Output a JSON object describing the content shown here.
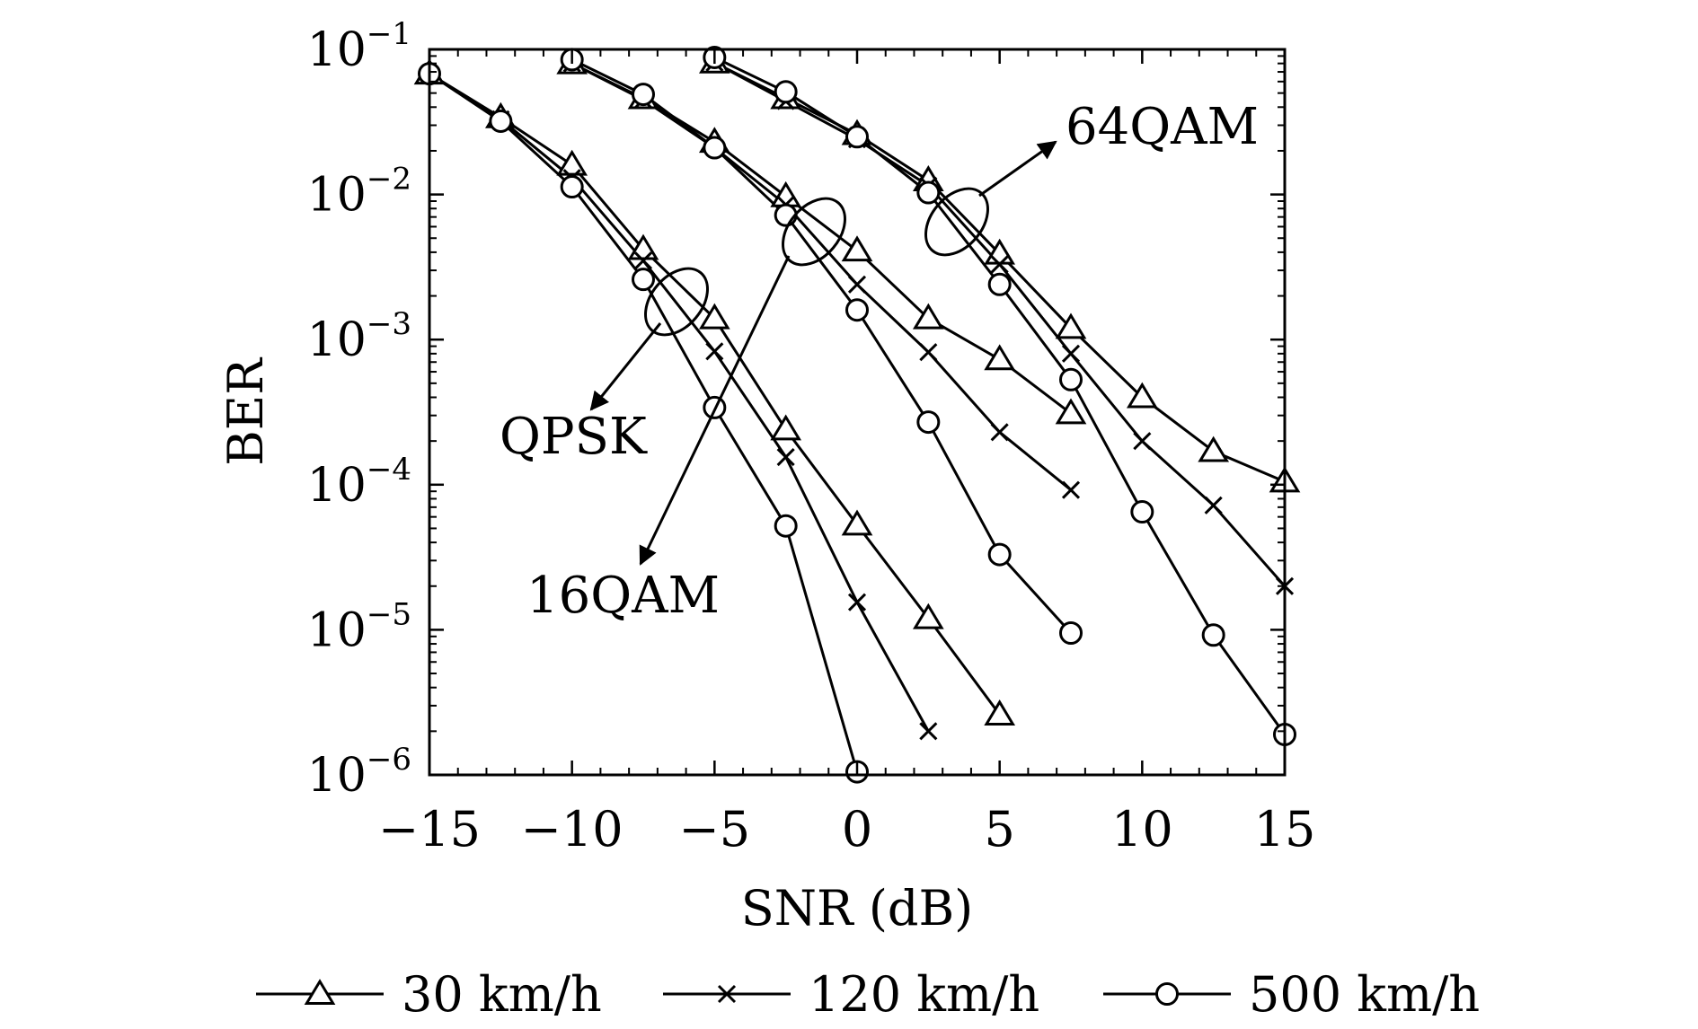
{
  "chart_data": {
    "type": "line",
    "title": "",
    "xlabel": "SNR (dB)",
    "ylabel": "BER",
    "x_range": [
      -15,
      15
    ],
    "y_range": [
      1e-06,
      0.1
    ],
    "y_scale": "log",
    "grid": false,
    "legend_position": "bottom",
    "x_ticks": [
      "−15",
      "−10",
      "−5",
      "0",
      "5",
      "10",
      "15"
    ],
    "x_tick_values": [
      -15,
      -10,
      -5,
      0,
      5,
      10,
      15
    ],
    "y_ticks": [
      {
        "base": "10",
        "exp": "−1",
        "value": 0.1
      },
      {
        "base": "10",
        "exp": "−2",
        "value": 0.01
      },
      {
        "base": "10",
        "exp": "−3",
        "value": 0.001
      },
      {
        "base": "10",
        "exp": "−4",
        "value": 0.0001
      },
      {
        "base": "10",
        "exp": "−5",
        "value": 1e-05
      },
      {
        "base": "10",
        "exp": "−6",
        "value": 1e-06
      }
    ],
    "legend": [
      {
        "label": "30 km/h",
        "marker": "triangle"
      },
      {
        "label": "120 km/h",
        "marker": "x"
      },
      {
        "label": "500 km/h",
        "marker": "circle"
      }
    ],
    "groups": [
      {
        "label": "QPSK",
        "series": [
          {
            "speed": "30 km/h",
            "marker": "triangle",
            "points": [
              [
                -15,
                0.068
              ],
              [
                -12.5,
                0.034
              ],
              [
                -10,
                0.016
              ],
              [
                -7.5,
                0.0042
              ],
              [
                -5,
                0.0014
              ],
              [
                -2.5,
                0.00024
              ],
              [
                0,
                5.3e-05
              ],
              [
                2.5,
                1.2e-05
              ],
              [
                5,
                2.6e-06
              ]
            ]
          },
          {
            "speed": "120 km/h",
            "marker": "x",
            "points": [
              [
                -15,
                0.068
              ],
              [
                -12.5,
                0.033
              ],
              [
                -10,
                0.013
              ],
              [
                -7.5,
                0.0035
              ],
              [
                -5,
                0.00083
              ],
              [
                -2.5,
                0.000155
              ],
              [
                0,
                1.55e-05
              ],
              [
                2.5,
                2e-06
              ]
            ]
          },
          {
            "speed": "500 km/h",
            "marker": "circle",
            "points": [
              [
                -15,
                0.068
              ],
              [
                -12.5,
                0.032
              ],
              [
                -10,
                0.0113
              ],
              [
                -7.5,
                0.0026
              ],
              [
                -5,
                0.00034
              ],
              [
                -2.5,
                5.2e-05
              ],
              [
                0,
                1.05e-06
              ]
            ]
          }
        ]
      },
      {
        "label": "16QAM",
        "series": [
          {
            "speed": "30 km/h",
            "marker": "triangle",
            "points": [
              [
                -10,
                0.08
              ],
              [
                -7.5,
                0.046
              ],
              [
                -5,
                0.023
              ],
              [
                -2.5,
                0.0097
              ],
              [
                0,
                0.0041
              ],
              [
                2.5,
                0.0014
              ],
              [
                5,
                0.00073
              ],
              [
                7.5,
                0.00031
              ]
            ]
          },
          {
            "speed": "120 km/h",
            "marker": "x",
            "points": [
              [
                -10,
                0.08
              ],
              [
                -7.5,
                0.045
              ],
              [
                -5,
                0.021
              ],
              [
                -2.5,
                0.0085
              ],
              [
                0,
                0.0024
              ],
              [
                2.5,
                0.00082
              ],
              [
                5,
                0.00023
              ],
              [
                7.5,
                9.2e-05
              ]
            ]
          },
          {
            "speed": "500 km/h",
            "marker": "circle",
            "points": [
              [
                -10,
                0.085
              ],
              [
                -7.5,
                0.049
              ],
              [
                -5,
                0.021
              ],
              [
                -2.5,
                0.0072
              ],
              [
                0,
                0.0016
              ],
              [
                2.5,
                0.00027
              ],
              [
                5,
                3.3e-05
              ],
              [
                7.5,
                9.5e-06
              ]
            ]
          }
        ]
      },
      {
        "label": "64QAM",
        "series": [
          {
            "speed": "30 km/h",
            "marker": "triangle",
            "points": [
              [
                -5,
                0.081
              ],
              [
                -2.5,
                0.046
              ],
              [
                0,
                0.026
              ],
              [
                2.5,
                0.0125
              ],
              [
                5,
                0.0039
              ],
              [
                7.5,
                0.0012
              ],
              [
                10,
                0.0004
              ],
              [
                12.5,
                0.00017
              ],
              [
                15,
                0.000105
              ]
            ]
          },
          {
            "speed": "120 km/h",
            "marker": "x",
            "points": [
              [
                -5,
                0.081
              ],
              [
                -2.5,
                0.044
              ],
              [
                0,
                0.024
              ],
              [
                2.5,
                0.0115
              ],
              [
                5,
                0.0033
              ],
              [
                7.5,
                0.0008
              ],
              [
                10,
                0.0002
              ],
              [
                12.5,
                7.2e-05
              ],
              [
                15,
                2e-05
              ]
            ]
          },
          {
            "speed": "500 km/h",
            "marker": "circle",
            "points": [
              [
                -5,
                0.088
              ],
              [
                -2.5,
                0.051
              ],
              [
                0,
                0.025
              ],
              [
                2.5,
                0.0103
              ],
              [
                5,
                0.0024
              ],
              [
                7.5,
                0.00053
              ],
              [
                10,
                6.5e-05
              ],
              [
                12.5,
                9.2e-06
              ],
              [
                15,
                1.9e-06
              ]
            ]
          }
        ]
      }
    ]
  }
}
